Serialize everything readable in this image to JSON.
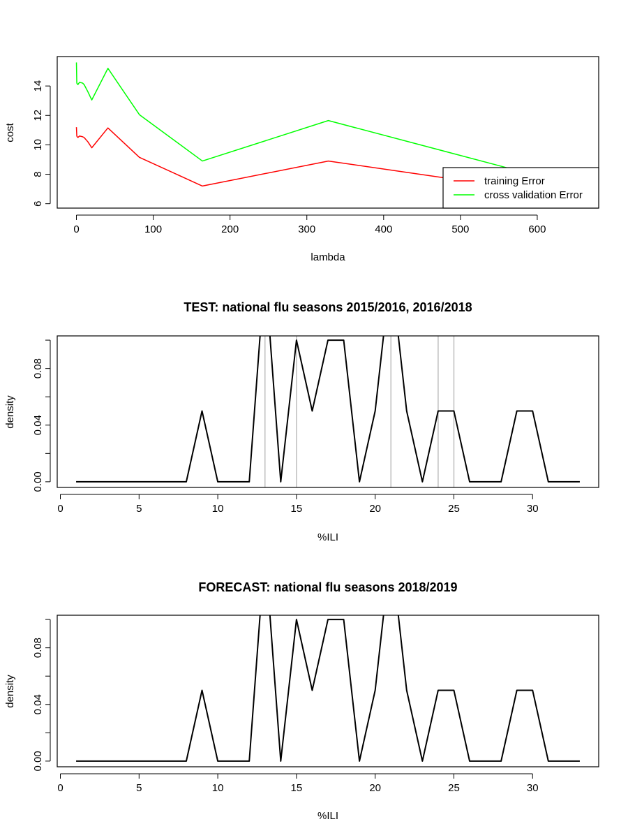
{
  "colors": {
    "training": "#ff0000",
    "cross_validation": "#00ff00",
    "density_line": "#000000",
    "reference_lines": "#bebebe"
  },
  "chart_data": [
    {
      "type": "line",
      "title": "",
      "xlabel": "lambda",
      "ylabel": "cost",
      "xlim": [
        -25,
        680
      ],
      "ylim": [
        5.7,
        16.0
      ],
      "xticks": [
        0,
        100,
        200,
        300,
        400,
        500,
        600
      ],
      "xtick_labels": [
        "0",
        "100",
        "200",
        "300",
        "400",
        "500",
        "600"
      ],
      "yticks": [
        6,
        8,
        10,
        12,
        14
      ],
      "ytick_labels": [
        "6",
        "8",
        "10",
        "12",
        "14"
      ],
      "legend": {
        "placement": "bottom-right",
        "entries": [
          "training Error",
          "cross validation Error"
        ]
      },
      "series": [
        {
          "name": "training Error",
          "color": "#ff0000",
          "x": [
            0,
            0.5,
            1,
            2,
            4,
            8,
            10,
            15,
            20,
            41,
            82,
            164,
            328,
            500,
            656
          ],
          "y": [
            11.2,
            10.6,
            10.55,
            10.5,
            10.6,
            10.55,
            10.5,
            10.2,
            9.8,
            11.15,
            9.15,
            7.2,
            8.9,
            7.6,
            7.0
          ]
        },
        {
          "name": "cross validation Error",
          "color": "#00ff00",
          "x": [
            0,
            0.5,
            1,
            2,
            4,
            8,
            10,
            15,
            20,
            41,
            82,
            164,
            328,
            560
          ],
          "y": [
            15.6,
            14.2,
            14.15,
            14.1,
            14.25,
            14.2,
            14.1,
            13.6,
            13.05,
            15.2,
            12.05,
            8.9,
            11.65,
            8.45
          ]
        }
      ]
    },
    {
      "type": "line",
      "title": "TEST: national flu seasons 2015/2016, 2016/2018",
      "xlabel": "%ILI",
      "ylabel": "density",
      "xlim": [
        -0.2,
        34.2
      ],
      "ylim": [
        -0.004,
        0.103
      ],
      "xticks": [
        0,
        5,
        10,
        15,
        20,
        25,
        30
      ],
      "xtick_labels": [
        "0",
        "5",
        "10",
        "15",
        "20",
        "25",
        "30"
      ],
      "yticks": [
        0.0,
        0.02,
        0.04,
        0.06,
        0.08,
        0.1
      ],
      "ytick_labels": [
        "0.00",
        "",
        "0.04",
        "",
        "0.08",
        ""
      ],
      "vlines": [
        13,
        15,
        21,
        24,
        25
      ],
      "series": [
        {
          "color": "#000000",
          "x": [
            1,
            2,
            3,
            4,
            5,
            6,
            7,
            8,
            9,
            10,
            11,
            12,
            13,
            14,
            15,
            16,
            17,
            18,
            19,
            20,
            21,
            22,
            23,
            24,
            25,
            26,
            27,
            28,
            29,
            30,
            31,
            32,
            33
          ],
          "y": [
            0,
            0,
            0,
            0,
            0,
            0,
            0,
            0,
            0.05,
            0,
            0,
            0,
            0.15,
            0,
            0.1,
            0.05,
            0.1,
            0.1,
            0,
            0.05,
            0.15,
            0.05,
            0,
            0.05,
            0.05,
            0,
            0,
            0,
            0.05,
            0.05,
            0,
            0,
            0
          ]
        }
      ]
    },
    {
      "type": "line",
      "title": "FORECAST: national flu seasons 2018/2019",
      "xlabel": "%ILI",
      "ylabel": "density",
      "xlim": [
        -0.2,
        34.2
      ],
      "ylim": [
        -0.004,
        0.103
      ],
      "xticks": [
        0,
        5,
        10,
        15,
        20,
        25,
        30
      ],
      "xtick_labels": [
        "0",
        "5",
        "10",
        "15",
        "20",
        "25",
        "30"
      ],
      "yticks": [
        0.0,
        0.02,
        0.04,
        0.06,
        0.08,
        0.1
      ],
      "ytick_labels": [
        "0.00",
        "",
        "0.04",
        "",
        "0.08",
        ""
      ],
      "vlines": [],
      "series": [
        {
          "color": "#000000",
          "x": [
            1,
            2,
            3,
            4,
            5,
            6,
            7,
            8,
            9,
            10,
            11,
            12,
            13,
            14,
            15,
            16,
            17,
            18,
            19,
            20,
            21,
            22,
            23,
            24,
            25,
            26,
            27,
            28,
            29,
            30,
            31,
            32,
            33
          ],
          "y": [
            0,
            0,
            0,
            0,
            0,
            0,
            0,
            0,
            0.05,
            0,
            0,
            0,
            0.15,
            0,
            0.1,
            0.05,
            0.1,
            0.1,
            0,
            0.05,
            0.15,
            0.05,
            0,
            0.05,
            0.05,
            0,
            0,
            0,
            0.05,
            0.05,
            0,
            0,
            0
          ]
        }
      ]
    }
  ]
}
